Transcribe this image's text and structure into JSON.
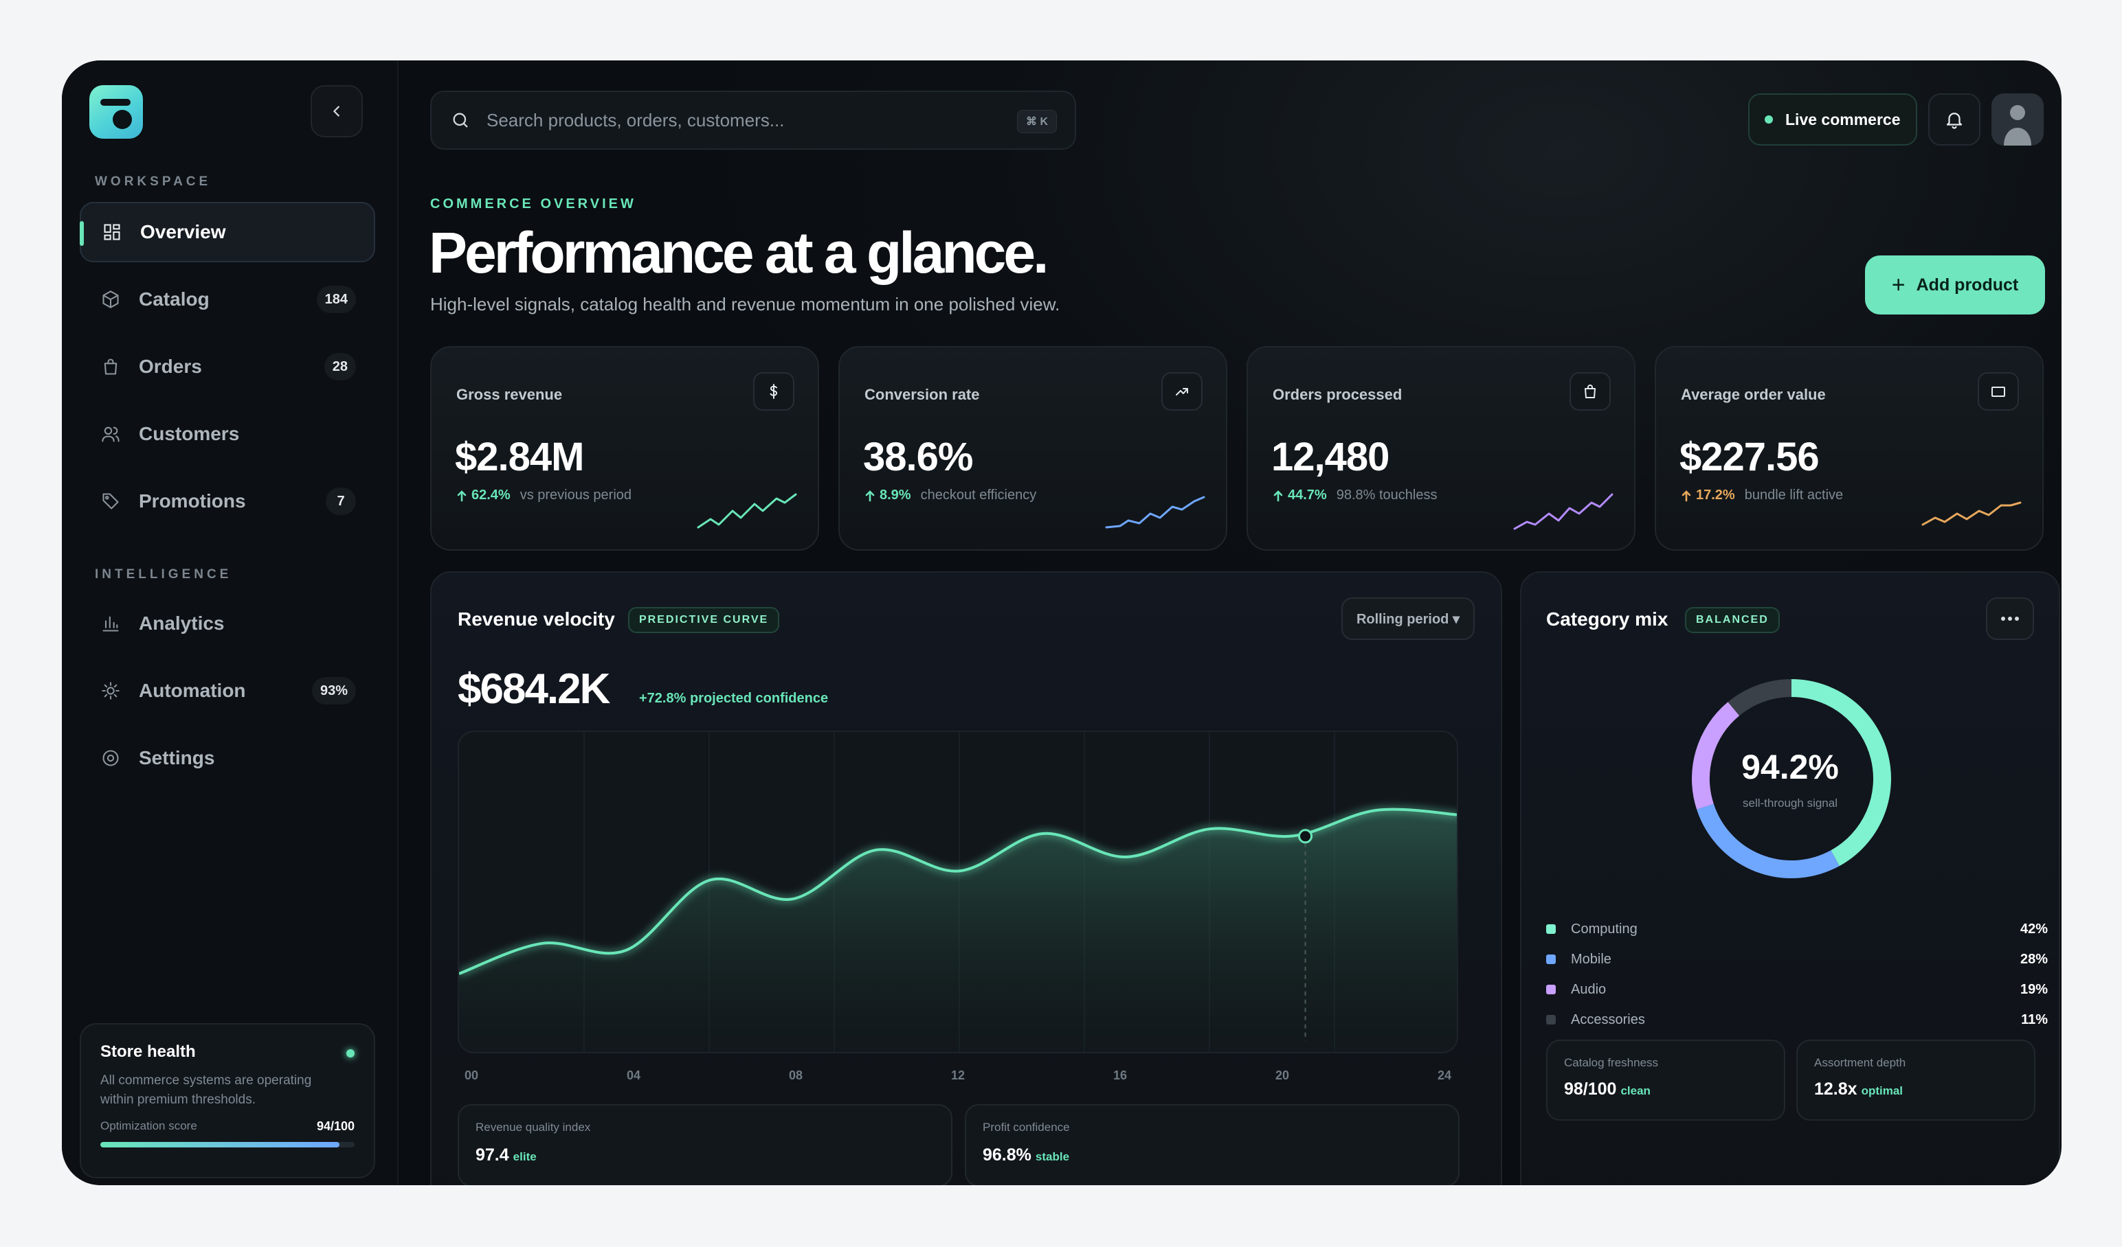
{
  "sidebar": {
    "workspace_label": "WORKSPACE",
    "intelligence_label": "INTELLIGENCE",
    "workspace_items": [
      {
        "label": "Overview",
        "badge": ""
      },
      {
        "label": "Catalog",
        "badge": "184"
      },
      {
        "label": "Orders",
        "badge": "28"
      },
      {
        "label": "Customers",
        "badge": ""
      },
      {
        "label": "Promotions",
        "badge": "7"
      }
    ],
    "intelligence_items": [
      {
        "label": "Analytics",
        "badge": ""
      },
      {
        "label": "Automation",
        "badge": "93%"
      },
      {
        "label": "Settings",
        "badge": ""
      }
    ],
    "health": {
      "title": "Store health",
      "description": "All commerce systems are operating within premium thresholds.",
      "score_label": "Optimization score",
      "score_value": "94/100",
      "score_fraction": 0.94
    }
  },
  "header": {
    "search_placeholder": "Search products, orders, customers...",
    "shortcut": "⌘ K",
    "live_label": "Live commerce"
  },
  "hero": {
    "eyebrow": "COMMERCE OVERVIEW",
    "title": "Performance at a glance.",
    "subtitle": "High-level signals, catalog health and revenue momentum in one polished view.",
    "add_button": "Add product"
  },
  "kpis": [
    {
      "label": "Gross revenue",
      "value": "$2.84M",
      "change": "62.4%",
      "note": "vs previous period",
      "color": "#69e6b8",
      "icon": "dollar-icon"
    },
    {
      "label": "Conversion rate",
      "value": "38.6%",
      "change": "8.9%",
      "note": "checkout efficiency",
      "color": "#6fa7ff",
      "icon": "trend-up-icon"
    },
    {
      "label": "Orders processed",
      "value": "12,480",
      "change": "44.7%",
      "note": "98.8% touchless",
      "color": "#b48cff",
      "icon": "bag-icon"
    },
    {
      "label": "Average order value",
      "value": "$227.56",
      "change": "17.2%",
      "note": "bundle lift active",
      "color": "#e8a85c",
      "icon": "card-icon"
    }
  ],
  "revenue": {
    "title": "Revenue velocity",
    "tag": "PREDICTIVE CURVE",
    "period_button": "Rolling period ▾",
    "value": "$684.2K",
    "confidence": "+72.8% projected confidence",
    "quality_label": "Revenue quality index",
    "quality_value": "97.4",
    "quality_qualifier": "elite",
    "profit_label": "Profit confidence",
    "profit_value": "96.8%",
    "profit_qualifier": "stable"
  },
  "category": {
    "title": "Category mix",
    "tag": "BALANCED",
    "center_value": "94.2%",
    "center_label": "sell-through signal",
    "freshness_label": "Catalog freshness",
    "freshness_value": "98/100",
    "freshness_qualifier": "clean",
    "depth_label": "Assortment depth",
    "depth_value": "12.8x",
    "depth_qualifier": "optimal"
  },
  "chart_data": [
    {
      "type": "area",
      "x_ticks": [
        "00",
        "04",
        "08",
        "12",
        "16",
        "20",
        "24"
      ],
      "x": [
        0,
        2,
        4,
        6,
        8,
        10,
        12,
        14,
        16,
        18,
        20,
        22,
        24
      ],
      "y": [
        20,
        33,
        30,
        60,
        52,
        73,
        64,
        80,
        70,
        82,
        79,
        90,
        88
      ],
      "ylim": [
        0,
        100
      ],
      "highlight_x": 20.3,
      "color": "#69e6b8"
    },
    {
      "type": "pie",
      "categories": [
        "Computing",
        "Mobile",
        "Audio",
        "Accessories"
      ],
      "values": [
        42,
        28,
        19,
        11
      ],
      "labels": [
        "42%",
        "28%",
        "19%",
        "11%"
      ],
      "colors": [
        "#7ff2cf",
        "#6fa7ff",
        "#c9a0ff",
        "#3a4148"
      ]
    }
  ]
}
